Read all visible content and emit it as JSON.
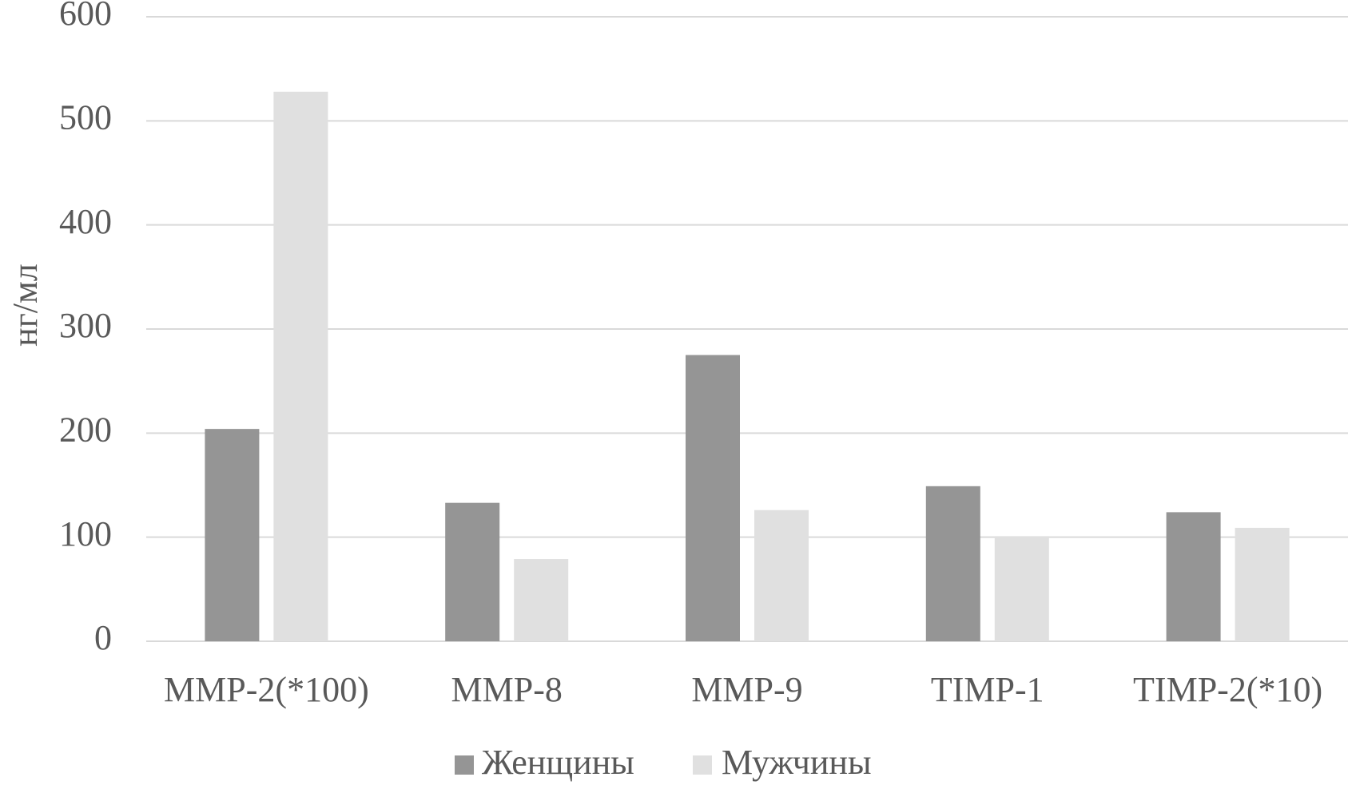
{
  "chart_data": {
    "type": "bar",
    "title": "",
    "xlabel": "",
    "ylabel": "нг/мл",
    "ylim": [
      0,
      600
    ],
    "yticks": [
      0,
      100,
      200,
      300,
      400,
      500,
      600
    ],
    "categories": [
      "MMP-2(*100)",
      "MMP-8",
      "MMP-9",
      "TIMP-1",
      "TIMP-2(*10)"
    ],
    "series": [
      {
        "name": "Женщины",
        "color": "#959595",
        "values": [
          204,
          133,
          275,
          149,
          124
        ]
      },
      {
        "name": "Мужчины",
        "color": "#e0e0e0",
        "values": [
          528,
          79,
          126,
          101,
          109
        ]
      }
    ],
    "grid": true,
    "gridline_color": "#d9d9d9",
    "legend_position": "bottom"
  }
}
